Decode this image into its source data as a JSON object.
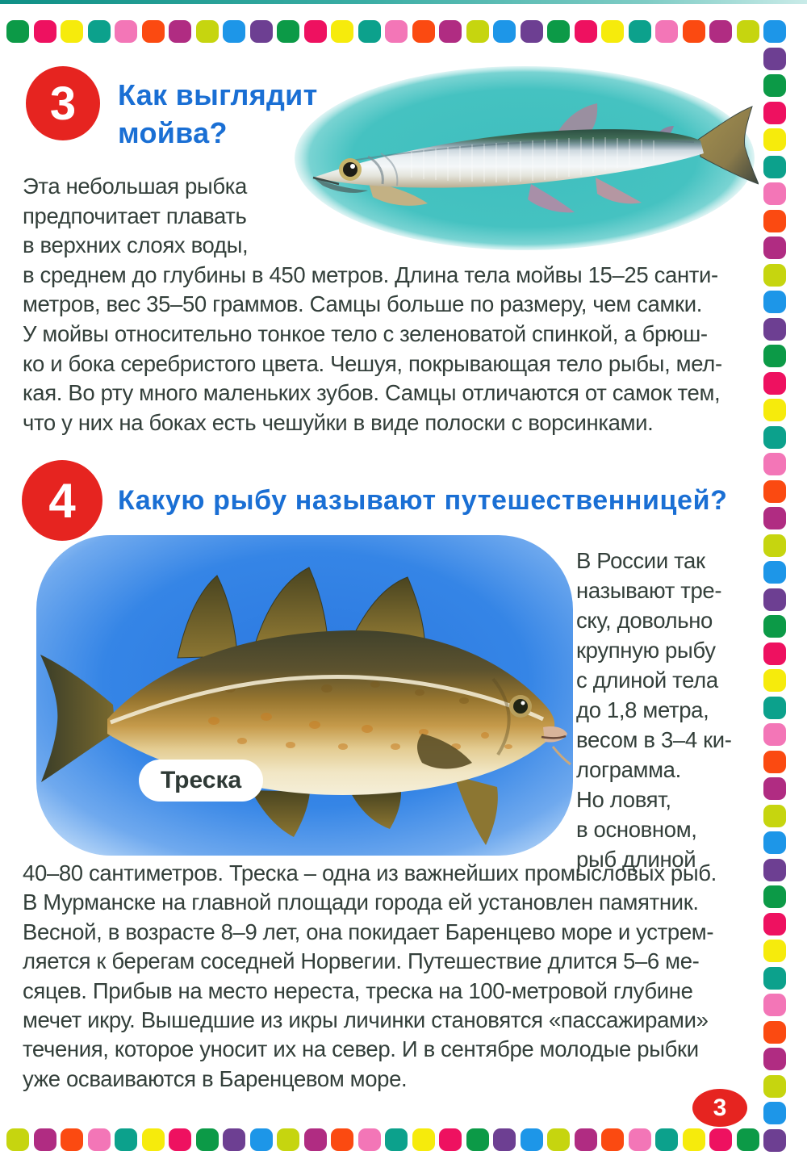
{
  "colors": {
    "page_bg": "#ffffff",
    "heading_blue": "#1a6fd4",
    "body_text": "#333f3a",
    "badge_red": "#e62420",
    "caption_bg": "#ffffff",
    "caption_text": "#2f3a36"
  },
  "border": {
    "cycle": [
      "#0c9a47",
      "#ee1160",
      "#f6eb0c",
      "#0ca18c",
      "#f376b7",
      "#fb4a11",
      "#b02c82",
      "#c6d50f",
      "#1d96e8",
      "#6d3f92"
    ]
  },
  "sections": {
    "s3": {
      "badge": "3",
      "title": "Как выглядит\nмойва?",
      "body": "Эта небольшая рыбка\nпредпочитает плавать\nв верхних слоях воды,\nв среднем до глубины в 450 метров. Длина тела мойвы 15–25 санти-\nметров, вес 35–50 граммов. Самцы больше по размеру, чем самки.\nУ мойвы относительно тонкое тело с зеленоватой спинкой, а брюш-\nко и бока серебристого цвета. Чешуя, покрывающая тело рыбы, мел-\nкая. Во рту много маленьких зубов. Самцы отличаются от самок тем,\nчто у них на боках есть чешуйки в виде полоски с ворсинками."
    },
    "s4": {
      "badge": "4",
      "title": "Какую рыбу называют путешественницей?",
      "caption": "Треска",
      "side": "В России так\nназывают тре-\nску, довольно\nкрупную рыбу\nс длиной тела\nдо 1,8 метра,\nвесом в 3–4 ки-\nлограмма.\nНо ловят,\nв основном,\nрыб длиной",
      "body": "40–80 сантиметров. Треска – одна из важнейших промысловых рыб.\nВ Мурманске на главной площади города ей установлен памятник.\nВесной, в возрасте 8–9 лет, она покидает Баренцево море и устрем-\nляется к берегам соседней Норвегии. Путешествие длится 5–6 ме-\nсяцев. Прибыв на место нереста, треска на 100-метровой глубине\nмечет икру. Вышедшие из икры личинки становятся «пассажирами»\nтечения, которое уносит их на север. И в сентябре молодые рыбки\nуже осваиваются в Баренцевом море."
    }
  },
  "footer": {
    "page_number": "3"
  }
}
